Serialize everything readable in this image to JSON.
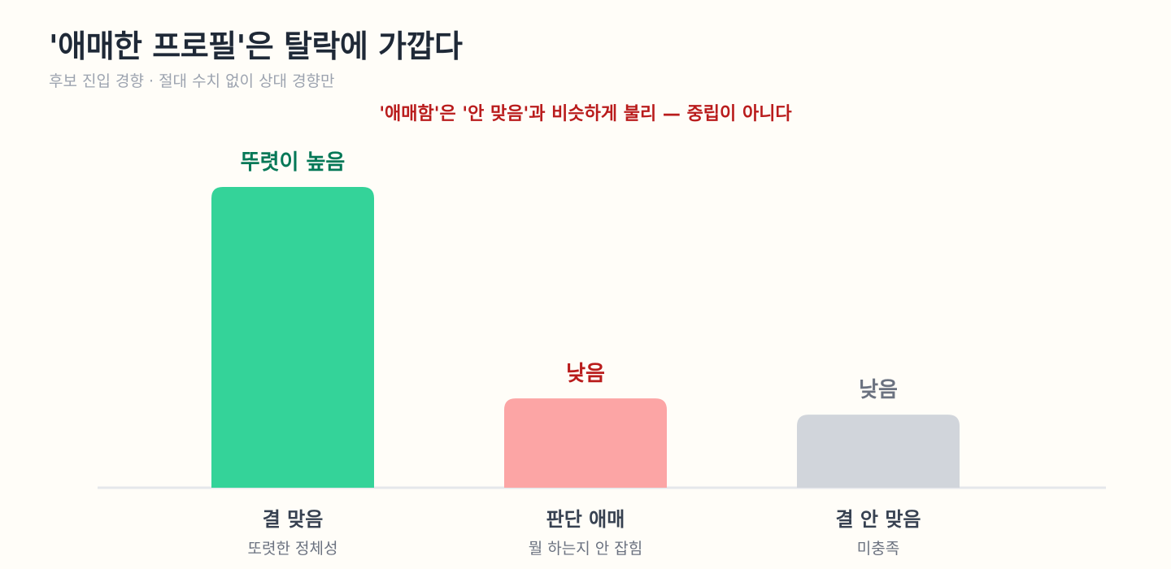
{
  "chart_data": {
    "type": "bar",
    "title": "'애매한 프로필'은 탈락에 가깝다",
    "subtitle": "후보 진입 경향 · 절대 수치 없이 상대 경향만",
    "annotation": "'애매함'은 '안 맞음'과 비슷하게 불리 — 중립이 아니다",
    "categories": [
      "결 맞음",
      "판단 애매",
      "결 안 맞음"
    ],
    "category_descriptions": [
      "또렷한 정체성",
      "뭘 하는지 안 잡힘",
      "미충족"
    ],
    "value_labels": [
      "뚜렷이 높음",
      "낮음",
      "낮음"
    ],
    "values": [
      1.0,
      0.297,
      0.243
    ],
    "ylim": [
      0,
      1.0
    ],
    "grid": false,
    "colors": {
      "bars": [
        "#34d399",
        "#fca5a5",
        "#d1d5db"
      ],
      "value_labels": [
        "#047857",
        "#b91c1c",
        "#6b7280"
      ],
      "axis": "#e5e7eb",
      "category_label": "#374151",
      "description": "#6b7280"
    }
  }
}
